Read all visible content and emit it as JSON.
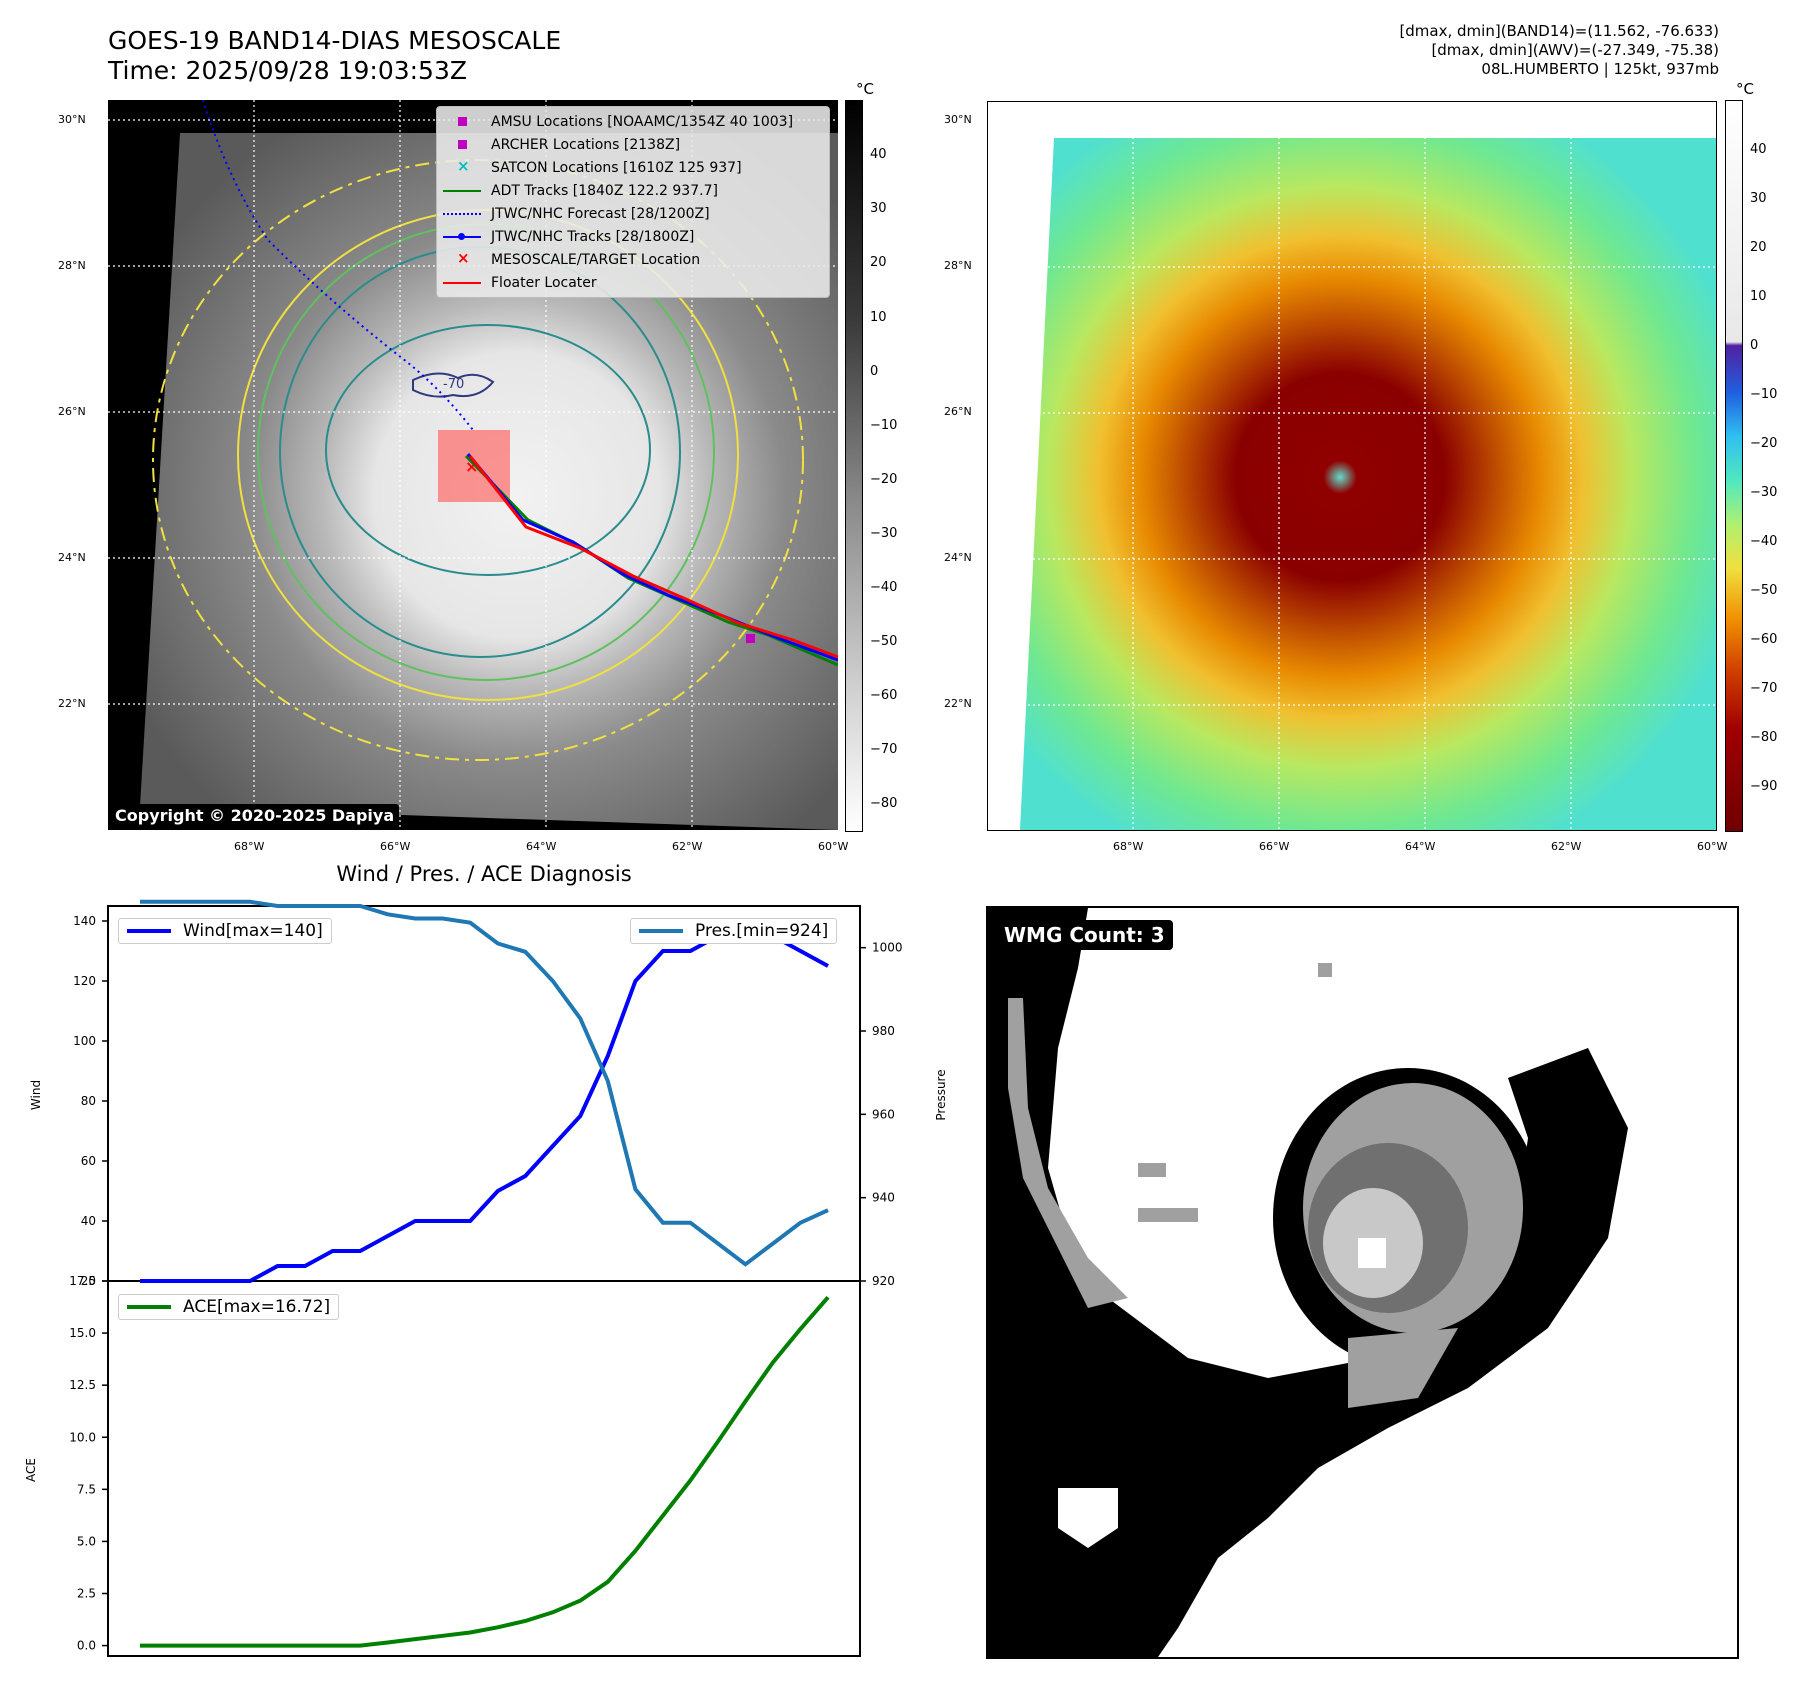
{
  "header": {
    "title_line1": "GOES-19 BAND14-DIAS MESOSCALE",
    "title_line2": "Time: 2025/09/28 19:03:53Z",
    "info_line1": "[dmax, dmin](BAND14)=(11.562, -76.633)",
    "info_line2": "[dmax, dmin](AWV)=(-27.349, -75.38)",
    "info_line3": "08L.HUMBERTO | 125kt, 937mb"
  },
  "map": {
    "lat_labels": [
      "30°N",
      "28°N",
      "26°N",
      "24°N",
      "22°N"
    ],
    "lon_labels": [
      "68°W",
      "66°W",
      "64°W",
      "62°W",
      "60°W"
    ],
    "copyright": "Copyright © 2020-2025 Dapiya",
    "legend": [
      {
        "label": "AMSU Locations [NOAAMC/1354Z 40 1003]",
        "color": "#c000c0",
        "marker": "square"
      },
      {
        "label": "ARCHER Locations [2138Z]",
        "color": "#c000c0",
        "marker": "square"
      },
      {
        "label": "SATCON Locations [1610Z 125 937]",
        "color": "#00c0c0",
        "marker": "x"
      },
      {
        "label": "ADT Tracks [1840Z 122.2 937.7]",
        "color": "#008000",
        "marker": "line"
      },
      {
        "label": "JTWC/NHC Forecast [28/1200Z]",
        "color": "#0000ff",
        "marker": "dotted"
      },
      {
        "label": "JTWC/NHC Tracks [28/1800Z]",
        "color": "#0000ff",
        "marker": "line-dot"
      },
      {
        "label": "MESOSCALE/TARGET Location",
        "color": "#ff0000",
        "marker": "x"
      },
      {
        "label": "Floater Locater",
        "color": "#ff0000",
        "marker": "line"
      }
    ],
    "contour_label": "-70"
  },
  "colorbar_gray": {
    "unit": "°C",
    "ticks": [
      "40",
      "30",
      "20",
      "10",
      "0",
      "−10",
      "−20",
      "−30",
      "−40",
      "−50",
      "−60",
      "−70",
      "−80"
    ]
  },
  "colorbar_color": {
    "unit": "°C",
    "ticks": [
      "40",
      "30",
      "20",
      "10",
      "0",
      "−10",
      "−20",
      "−30",
      "−40",
      "−50",
      "−60",
      "−70",
      "−80",
      "−90"
    ]
  },
  "colors": {
    "wind": "#0000ff",
    "pressure": "#1f77b4",
    "ace": "#008000",
    "contour_yellow": "#f0e040",
    "contour_green": "#60c060",
    "contour_teal": "#2a8c8c",
    "contour_navy": "#303880"
  },
  "chart_data": [
    {
      "type": "line",
      "title": "Wind / Pres. / ACE Diagnosis",
      "ylabel": "Wind",
      "ylabel_right": "Pressure",
      "ylim": [
        20,
        145
      ],
      "ylim_right": [
        920,
        1010
      ],
      "yticks": [
        20,
        40,
        60,
        80,
        100,
        120,
        140
      ],
      "yticks_right": [
        920,
        940,
        960,
        980,
        1000
      ],
      "series": [
        {
          "name": "Wind[max=140]",
          "axis": "left",
          "values": [
            20,
            20,
            20,
            20,
            20,
            25,
            25,
            30,
            30,
            35,
            40,
            40,
            40,
            50,
            55,
            65,
            75,
            95,
            120,
            130,
            130,
            135,
            140,
            135,
            130,
            125
          ]
        },
        {
          "name": "Pres.[min=924]",
          "axis": "right",
          "values": [
            1011,
            1011,
            1011,
            1011,
            1011,
            1010,
            1010,
            1010,
            1010,
            1008,
            1007,
            1007,
            1006,
            1001,
            999,
            992,
            983,
            968,
            942,
            934,
            934,
            929,
            924,
            929,
            934,
            937
          ]
        }
      ]
    },
    {
      "type": "line",
      "title": "",
      "ylabel": "ACE",
      "ylim": [
        -0.5,
        17.5
      ],
      "yticks": [
        "0.0",
        "2.5",
        "5.0",
        "7.5",
        "10.0",
        "12.5",
        "15.0",
        "17.5"
      ],
      "series": [
        {
          "name": "ACE[max=16.72]",
          "values": [
            0,
            0,
            0,
            0,
            0,
            0,
            0,
            0,
            0,
            0.15,
            0.31,
            0.47,
            0.63,
            0.88,
            1.18,
            1.6,
            2.16,
            3.06,
            4.55,
            6.24,
            7.93,
            9.79,
            11.72,
            13.6,
            15.2,
            16.72
          ]
        }
      ]
    }
  ],
  "wmg": {
    "label": "WMG Count: 3"
  }
}
